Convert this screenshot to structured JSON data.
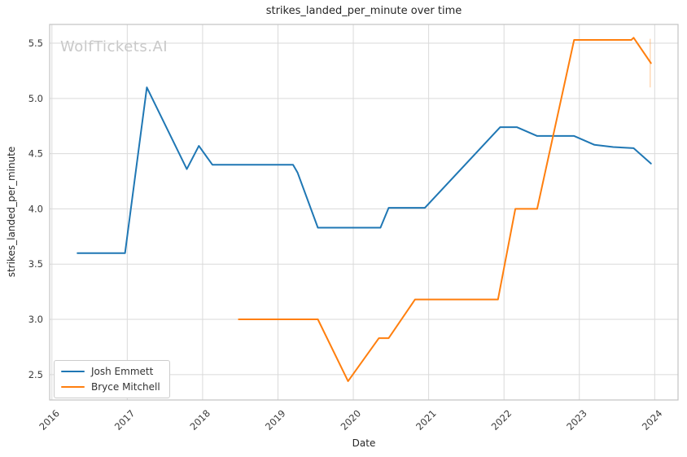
{
  "header": {
    "watermark": "WolfTickets.AI"
  },
  "axes": {
    "xlabel": "Date",
    "ylabel": "strikes_landed_per_minute"
  },
  "legend": {
    "items": [
      {
        "label": "Josh Emmett",
        "color": "#1f77b4"
      },
      {
        "label": "Bryce Mitchell",
        "color": "#ff7f0e"
      }
    ]
  },
  "chart_data": {
    "type": "line",
    "title": "strikes_landed_per_minute over time",
    "xlabel": "Date",
    "ylabel": "strikes_landed_per_minute",
    "xticks": [
      2016,
      2017,
      2018,
      2019,
      2020,
      2021,
      2022,
      2023,
      2024
    ],
    "x_tick_labels": [
      "2016",
      "2017",
      "2018",
      "2019",
      "2020",
      "2021",
      "2022",
      "2023",
      "2024"
    ],
    "yticks": [
      2.5,
      3.0,
      3.5,
      4.0,
      4.5,
      5.0,
      5.5
    ],
    "y_tick_labels": [
      "2.5",
      "3.0",
      "3.5",
      "4.0",
      "4.5",
      "5.0",
      "5.5"
    ],
    "xlim": [
      2015.97,
      2024.31
    ],
    "ylim": [
      2.27,
      5.67
    ],
    "grid": true,
    "legend_position": "lower left",
    "series": [
      {
        "name": "Josh Emmett",
        "color": "#1f77b4",
        "points": [
          [
            2016.34,
            3.6
          ],
          [
            2016.97,
            3.6
          ],
          [
            2017.26,
            5.1
          ],
          [
            2017.79,
            4.36
          ],
          [
            2017.95,
            4.57
          ],
          [
            2018.13,
            4.4
          ],
          [
            2019.2,
            4.4
          ],
          [
            2019.26,
            4.33
          ],
          [
            2019.53,
            3.83
          ],
          [
            2020.36,
            3.83
          ],
          [
            2020.47,
            4.01
          ],
          [
            2020.95,
            4.01
          ],
          [
            2021.95,
            4.74
          ],
          [
            2022.17,
            4.74
          ],
          [
            2022.44,
            4.66
          ],
          [
            2022.93,
            4.66
          ],
          [
            2023.2,
            4.58
          ],
          [
            2023.45,
            4.56
          ],
          [
            2023.72,
            4.55
          ],
          [
            2023.95,
            4.41
          ]
        ]
      },
      {
        "name": "Bryce Mitchell",
        "color": "#ff7f0e",
        "points": [
          [
            2018.48,
            3.0
          ],
          [
            2019.53,
            3.0
          ],
          [
            2019.93,
            2.44
          ],
          [
            2020.34,
            2.83
          ],
          [
            2020.47,
            2.83
          ],
          [
            2020.82,
            3.18
          ],
          [
            2021.92,
            3.18
          ],
          [
            2022.15,
            4.0
          ],
          [
            2022.44,
            4.0
          ],
          [
            2022.93,
            5.53
          ],
          [
            2023.69,
            5.53
          ],
          [
            2023.72,
            5.55
          ],
          [
            2023.95,
            5.32
          ]
        ]
      }
    ],
    "annotations": [
      {
        "type": "faint-vertical-segment",
        "x": 2023.94,
        "y_from": 5.1,
        "y_to": 5.54,
        "color": "#ff7f0e",
        "opacity": 0.3
      }
    ]
  }
}
